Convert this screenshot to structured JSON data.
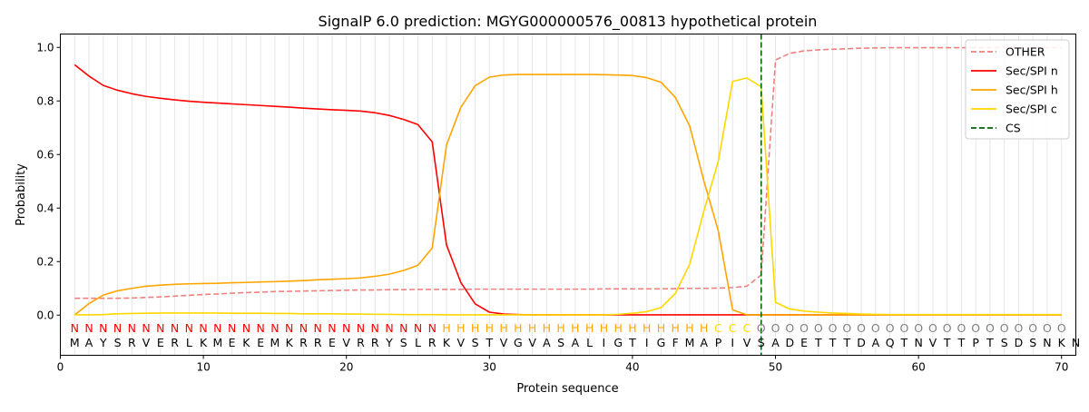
{
  "chart_data": {
    "type": "line",
    "title": "SignalP 6.0 prediction: MGYG000000576_00813 hypothetical protein",
    "xlabel": "Protein sequence",
    "ylabel": "Probability",
    "xlim": [
      0,
      71
    ],
    "ylim": [
      -0.15,
      1.05
    ],
    "x_ticks": [
      0,
      10,
      20,
      30,
      40,
      50,
      60,
      70
    ],
    "y_ticks": [
      0.0,
      0.2,
      0.4,
      0.6,
      0.8,
      1.0
    ],
    "x_tick_labels": [
      "0",
      "10",
      "20",
      "30",
      "40",
      "50",
      "60",
      "70"
    ],
    "y_tick_labels": [
      "0.0",
      "0.2",
      "0.4",
      "0.6",
      "0.8",
      "1.0"
    ],
    "grid": "vertical lines at each residue",
    "legend_position": "top-right",
    "sequence": "MAYSRVERLKMEKEMKRREVRRYSLRKVSTVGVASALIGTIGFMAPIVSADETTTDAQTNVTTPTSDSNKN",
    "labels": "NNNNNNNNNNNNNNNNNNNNNNNNNNHHHHHHHHHHHHHHHHHHHCCCOOOOOOOOOOOOOOOOOOOOOO",
    "label_colors": {
      "N": "#ff0000",
      "H": "#ffa500",
      "C": "#ffd700",
      "O": "#808080"
    },
    "cleavage_site": 49,
    "series": [
      {
        "name": "OTHER",
        "color": "#f08080",
        "dashed": true,
        "values": [
          0.063,
          0.063,
          0.063,
          0.063,
          0.064,
          0.066,
          0.068,
          0.071,
          0.074,
          0.077,
          0.079,
          0.082,
          0.084,
          0.086,
          0.088,
          0.089,
          0.09,
          0.091,
          0.092,
          0.093,
          0.094,
          0.094,
          0.095,
          0.095,
          0.096,
          0.096,
          0.096,
          0.096,
          0.097,
          0.097,
          0.097,
          0.097,
          0.097,
          0.097,
          0.097,
          0.097,
          0.097,
          0.098,
          0.098,
          0.098,
          0.098,
          0.098,
          0.099,
          0.1,
          0.1,
          0.101,
          0.103,
          0.108,
          0.15,
          0.953,
          0.978,
          0.987,
          0.991,
          0.993,
          0.995,
          0.997,
          0.998,
          0.999,
          0.999,
          0.999,
          0.999,
          0.999,
          0.999,
          0.999,
          0.999,
          0.999,
          0.999,
          0.999,
          0.999,
          0.999
        ]
      },
      {
        "name": "Sec/SPI n",
        "color": "#ff0000",
        "dashed": false,
        "values": [
          0.935,
          0.893,
          0.858,
          0.84,
          0.827,
          0.817,
          0.81,
          0.804,
          0.799,
          0.795,
          0.792,
          0.789,
          0.786,
          0.783,
          0.78,
          0.777,
          0.773,
          0.77,
          0.767,
          0.765,
          0.762,
          0.756,
          0.746,
          0.731,
          0.712,
          0.647,
          0.262,
          0.122,
          0.042,
          0.011,
          0.004,
          0.002,
          0.001,
          0.001,
          0.001,
          0.001,
          0.001,
          0.001,
          0.001,
          0.001,
          0.001,
          0.001,
          0.001,
          0.001,
          0.001,
          0.001,
          0.001,
          0.001,
          0.001,
          0.001,
          0.001,
          0.001,
          0.001,
          0.001,
          0.001,
          0.001,
          0.001,
          0.001,
          0.001,
          0.001,
          0.001,
          0.001,
          0.001,
          0.001,
          0.001,
          0.001,
          0.001,
          0.001,
          0.001,
          0.001
        ]
      },
      {
        "name": "Sec/SPI h",
        "color": "#ffa500",
        "dashed": false,
        "values": [
          0.001,
          0.043,
          0.075,
          0.091,
          0.1,
          0.108,
          0.112,
          0.115,
          0.117,
          0.118,
          0.119,
          0.121,
          0.122,
          0.124,
          0.125,
          0.127,
          0.129,
          0.132,
          0.134,
          0.136,
          0.139,
          0.145,
          0.153,
          0.167,
          0.186,
          0.251,
          0.636,
          0.776,
          0.857,
          0.889,
          0.897,
          0.899,
          0.899,
          0.899,
          0.899,
          0.899,
          0.899,
          0.898,
          0.897,
          0.895,
          0.887,
          0.87,
          0.813,
          0.707,
          0.5,
          0.315,
          0.02,
          0.001,
          0.001,
          0.001,
          0.001,
          0.001,
          0.001,
          0.001,
          0.001,
          0.001,
          0.001,
          0.001,
          0.001,
          0.001,
          0.001,
          0.001,
          0.001,
          0.001,
          0.001,
          0.001,
          0.001,
          0.001,
          0.001,
          0.001
        ]
      },
      {
        "name": "Sec/SPI c",
        "color": "#ffd700",
        "dashed": false,
        "values": [
          0.001,
          0.001,
          0.002,
          0.005,
          0.006,
          0.007,
          0.008,
          0.008,
          0.008,
          0.008,
          0.008,
          0.007,
          0.007,
          0.007,
          0.006,
          0.006,
          0.005,
          0.005,
          0.005,
          0.004,
          0.004,
          0.003,
          0.003,
          0.002,
          0.002,
          0.002,
          0.001,
          0.001,
          0.001,
          0.001,
          0.001,
          0.001,
          0.001,
          0.001,
          0.001,
          0.001,
          0.001,
          0.001,
          0.003,
          0.007,
          0.013,
          0.028,
          0.081,
          0.19,
          0.39,
          0.575,
          0.873,
          0.886,
          0.853,
          0.048,
          0.023,
          0.015,
          0.011,
          0.008,
          0.006,
          0.004,
          0.003,
          0.002,
          0.002,
          0.002,
          0.002,
          0.002,
          0.002,
          0.002,
          0.002,
          0.002,
          0.002,
          0.002,
          0.002,
          0.002
        ]
      },
      {
        "name": "CS",
        "color": "#006400",
        "dashed": true,
        "values": []
      }
    ]
  }
}
